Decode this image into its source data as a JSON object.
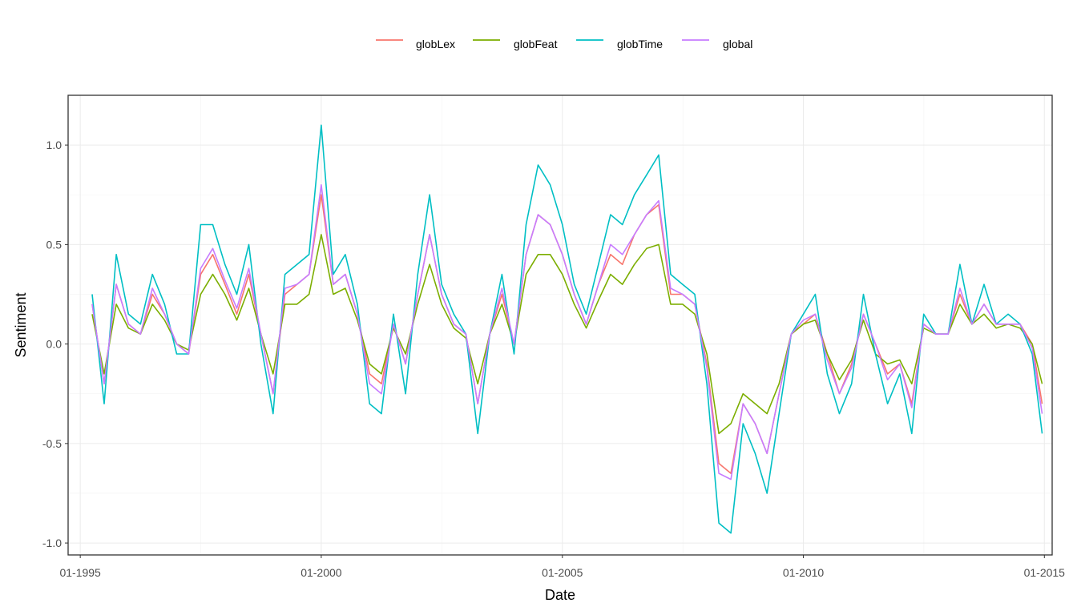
{
  "chart_data": {
    "type": "line",
    "title": "",
    "xlabel": "Date",
    "ylabel": "Sentiment",
    "x_range": [
      "1994-10-01",
      "2015-03-01"
    ],
    "ylim": [
      -1.06,
      1.25
    ],
    "x_ticks": [
      {
        "date": "1995-01-01",
        "label": "01-1995"
      },
      {
        "date": "2000-01-01",
        "label": "01-2000"
      },
      {
        "date": "2005-01-01",
        "label": "01-2005"
      },
      {
        "date": "2010-01-01",
        "label": "01-2010"
      },
      {
        "date": "2015-01-01",
        "label": "01-2015"
      }
    ],
    "y_ticks": [
      {
        "value": 1.0,
        "label": "1.0"
      },
      {
        "value": 0.5,
        "label": "0.5"
      },
      {
        "value": 0.0,
        "label": "0.0"
      },
      {
        "value": -0.5,
        "label": "-0.5"
      },
      {
        "value": -1.0,
        "label": "-1.0"
      }
    ],
    "grid": true,
    "legend_position": "top",
    "x": [
      "1995-04-01",
      "1995-07-01",
      "1995-10-01",
      "1996-01-01",
      "1996-04-01",
      "1996-07-01",
      "1996-10-01",
      "1997-01-01",
      "1997-04-01",
      "1997-07-01",
      "1997-10-01",
      "1998-01-01",
      "1998-04-01",
      "1998-07-01",
      "1998-10-01",
      "1999-01-01",
      "1999-04-01",
      "1999-07-01",
      "1999-10-01",
      "2000-01-01",
      "2000-04-01",
      "2000-07-01",
      "2000-10-01",
      "2001-01-01",
      "2001-04-01",
      "2001-07-01",
      "2001-10-01",
      "2002-01-01",
      "2002-04-01",
      "2002-07-01",
      "2002-10-01",
      "2003-01-01",
      "2003-04-01",
      "2003-07-01",
      "2003-10-01",
      "2004-01-01",
      "2004-04-01",
      "2004-07-01",
      "2004-10-01",
      "2005-01-01",
      "2005-04-01",
      "2005-07-01",
      "2005-10-01",
      "2006-01-01",
      "2006-04-01",
      "2006-07-01",
      "2006-10-01",
      "2007-01-01",
      "2007-04-01",
      "2007-07-01",
      "2007-10-01",
      "2008-01-01",
      "2008-04-01",
      "2008-07-01",
      "2008-10-01",
      "2009-01-01",
      "2009-04-01",
      "2009-07-01",
      "2009-10-01",
      "2010-01-01",
      "2010-04-01",
      "2010-07-01",
      "2010-10-01",
      "2011-01-01",
      "2011-04-01",
      "2011-07-01",
      "2011-10-01",
      "2012-01-01",
      "2012-04-01",
      "2012-07-01",
      "2012-10-01",
      "2013-01-01",
      "2013-04-01",
      "2013-07-01",
      "2013-10-01",
      "2014-01-01",
      "2014-04-01",
      "2014-07-01",
      "2014-10-01",
      "2014-12-15"
    ],
    "series": [
      {
        "name": "globLex",
        "color": "#F8766D",
        "values": [
          0.2,
          -0.2,
          0.3,
          0.1,
          0.05,
          0.25,
          0.15,
          0.0,
          -0.05,
          0.35,
          0.45,
          0.3,
          0.15,
          0.35,
          0.05,
          -0.25,
          0.25,
          0.3,
          0.35,
          0.75,
          0.3,
          0.35,
          0.15,
          -0.15,
          -0.2,
          0.1,
          -0.1,
          0.25,
          0.55,
          0.25,
          0.1,
          0.05,
          -0.3,
          0.05,
          0.25,
          0.0,
          0.45,
          0.65,
          0.6,
          0.45,
          0.25,
          0.1,
          0.3,
          0.45,
          0.4,
          0.55,
          0.65,
          0.7,
          0.25,
          0.25,
          0.2,
          -0.1,
          -0.6,
          -0.65,
          -0.3,
          -0.4,
          -0.55,
          -0.25,
          0.05,
          0.1,
          0.15,
          -0.05,
          -0.25,
          -0.1,
          0.15,
          0.0,
          -0.15,
          -0.1,
          -0.3,
          0.1,
          0.05,
          0.05,
          0.25,
          0.1,
          0.2,
          0.1,
          0.1,
          0.1,
          0.0,
          -0.3
        ]
      },
      {
        "name": "globFeat",
        "color": "#7CAE00",
        "values": [
          0.15,
          -0.15,
          0.2,
          0.08,
          0.05,
          0.2,
          0.12,
          0.0,
          -0.03,
          0.25,
          0.35,
          0.25,
          0.12,
          0.28,
          0.05,
          -0.15,
          0.2,
          0.2,
          0.25,
          0.55,
          0.25,
          0.28,
          0.12,
          -0.1,
          -0.15,
          0.08,
          -0.05,
          0.2,
          0.4,
          0.2,
          0.08,
          0.03,
          -0.2,
          0.05,
          0.2,
          0.0,
          0.35,
          0.45,
          0.45,
          0.35,
          0.2,
          0.08,
          0.22,
          0.35,
          0.3,
          0.4,
          0.48,
          0.5,
          0.2,
          0.2,
          0.15,
          -0.05,
          -0.45,
          -0.4,
          -0.25,
          -0.3,
          -0.35,
          -0.2,
          0.05,
          0.1,
          0.12,
          -0.05,
          -0.18,
          -0.08,
          0.12,
          -0.05,
          -0.1,
          -0.08,
          -0.2,
          0.08,
          0.05,
          0.05,
          0.2,
          0.1,
          0.15,
          0.08,
          0.1,
          0.08,
          0.0,
          -0.2
        ]
      },
      {
        "name": "globTime",
        "color": "#00BFC4",
        "values": [
          0.25,
          -0.3,
          0.45,
          0.15,
          0.1,
          0.35,
          0.2,
          -0.05,
          -0.05,
          0.6,
          0.6,
          0.4,
          0.25,
          0.5,
          0.0,
          -0.35,
          0.35,
          0.4,
          0.45,
          1.1,
          0.35,
          0.45,
          0.2,
          -0.3,
          -0.35,
          0.15,
          -0.25,
          0.35,
          0.75,
          0.3,
          0.15,
          0.05,
          -0.45,
          0.05,
          0.35,
          -0.05,
          0.6,
          0.9,
          0.8,
          0.6,
          0.3,
          0.15,
          0.4,
          0.65,
          0.6,
          0.75,
          0.85,
          0.95,
          0.35,
          0.3,
          0.25,
          -0.2,
          -0.9,
          -0.95,
          -0.4,
          -0.55,
          -0.75,
          -0.35,
          0.05,
          0.15,
          0.25,
          -0.15,
          -0.35,
          -0.2,
          0.25,
          -0.05,
          -0.3,
          -0.15,
          -0.45,
          0.15,
          0.05,
          0.05,
          0.4,
          0.1,
          0.3,
          0.1,
          0.15,
          0.1,
          -0.05,
          -0.45
        ]
      },
      {
        "name": "global",
        "color": "#C77CFF",
        "values": [
          0.2,
          -0.2,
          0.3,
          0.1,
          0.05,
          0.28,
          0.15,
          0.0,
          -0.05,
          0.38,
          0.48,
          0.32,
          0.18,
          0.38,
          0.05,
          -0.25,
          0.28,
          0.3,
          0.35,
          0.8,
          0.3,
          0.35,
          0.15,
          -0.2,
          -0.25,
          0.1,
          -0.1,
          0.25,
          0.55,
          0.25,
          0.1,
          0.05,
          -0.3,
          0.05,
          0.28,
          0.0,
          0.45,
          0.65,
          0.6,
          0.45,
          0.25,
          0.1,
          0.3,
          0.5,
          0.45,
          0.55,
          0.65,
          0.72,
          0.28,
          0.25,
          0.2,
          -0.12,
          -0.65,
          -0.68,
          -0.3,
          -0.4,
          -0.55,
          -0.25,
          0.05,
          0.12,
          0.15,
          -0.08,
          -0.25,
          -0.12,
          0.15,
          0.0,
          -0.18,
          -0.1,
          -0.32,
          0.1,
          0.05,
          0.05,
          0.28,
          0.1,
          0.2,
          0.1,
          0.1,
          0.1,
          -0.02,
          -0.35
        ]
      }
    ]
  }
}
